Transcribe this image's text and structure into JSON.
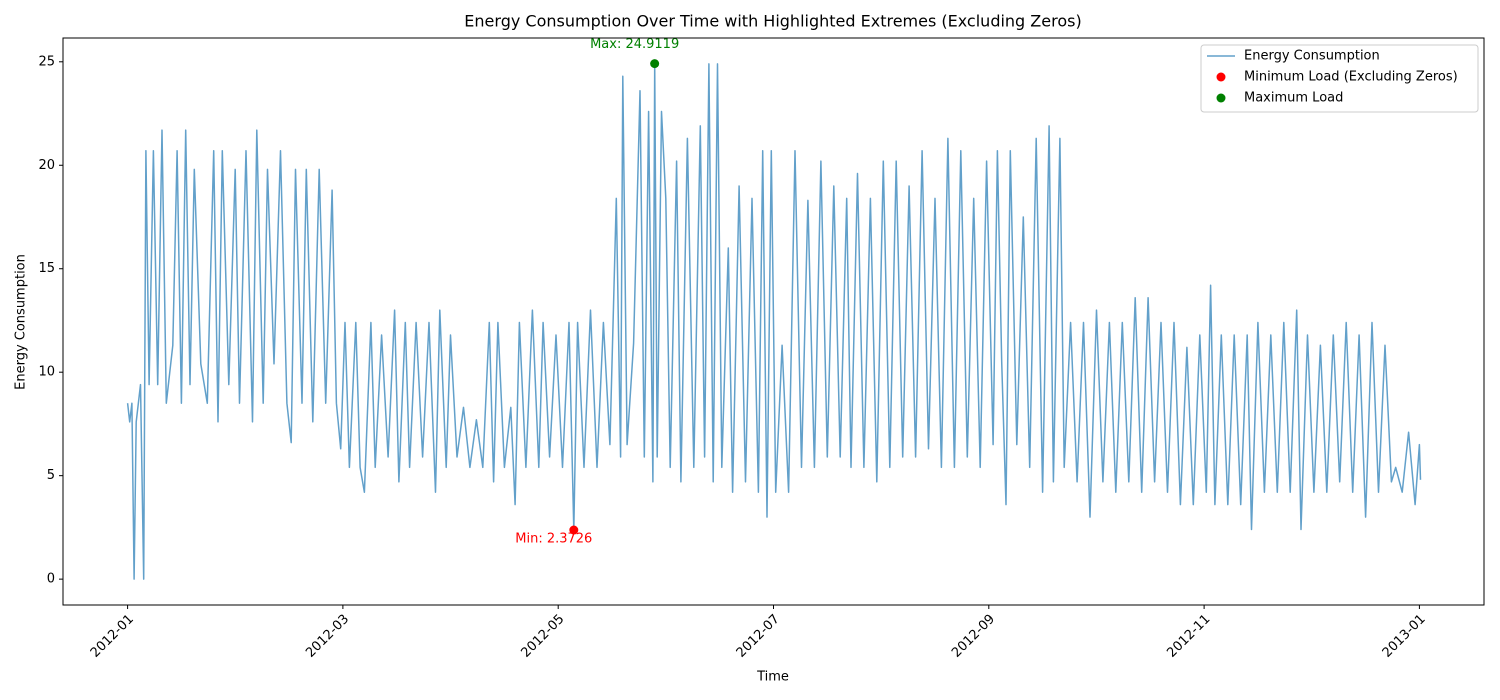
{
  "chart_data": {
    "type": "line",
    "title": "Energy Consumption Over Time with Highlighted Extremes (Excluding Zeros)",
    "x_label": "Time",
    "y_label": "Energy Consumption",
    "xlim": [
      -0.6,
      12.6
    ],
    "xticks": [
      {
        "value": 0,
        "label": "2012-01"
      },
      {
        "value": 2,
        "label": "2012-03"
      },
      {
        "value": 4,
        "label": "2012-05"
      },
      {
        "value": 6,
        "label": "2012-07"
      },
      {
        "value": 8,
        "label": "2012-09"
      },
      {
        "value": 10,
        "label": "2012-11"
      },
      {
        "value": 12,
        "label": "2013-01"
      }
    ],
    "ylim": [
      -1.25,
      26.15
    ],
    "yticks": [
      0,
      5,
      10,
      15,
      20,
      25
    ],
    "grid": false,
    "legend": "upper right",
    "series": [
      {
        "name": "Energy Consumption",
        "color": "#1f77b4",
        "alpha": 0.7,
        "style": "line",
        "x": [
          0.0,
          0.02,
          0.04,
          0.06,
          0.08,
          0.12,
          0.15,
          0.17,
          0.2,
          0.24,
          0.28,
          0.32,
          0.36,
          0.42,
          0.46,
          0.5,
          0.54,
          0.58,
          0.62,
          0.68,
          0.74,
          0.8,
          0.84,
          0.88,
          0.94,
          1.0,
          1.04,
          1.1,
          1.16,
          1.2,
          1.26,
          1.3,
          1.36,
          1.42,
          1.48,
          1.52,
          1.56,
          1.62,
          1.66,
          1.72,
          1.78,
          1.84,
          1.9,
          1.94,
          1.98,
          2.02,
          2.06,
          2.12,
          2.16,
          2.2,
          2.26,
          2.3,
          2.36,
          2.42,
          2.48,
          2.52,
          2.58,
          2.62,
          2.68,
          2.74,
          2.8,
          2.86,
          2.9,
          2.96,
          3.0,
          3.06,
          3.12,
          3.18,
          3.24,
          3.3,
          3.36,
          3.4,
          3.44,
          3.5,
          3.56,
          3.6,
          3.64,
          3.7,
          3.76,
          3.82,
          3.86,
          3.92,
          3.98,
          4.04,
          4.1,
          4.145,
          4.18,
          4.24,
          4.3,
          4.36,
          4.42,
          4.48,
          4.54,
          4.58,
          4.6,
          4.64,
          4.7,
          4.76,
          4.8,
          4.84,
          4.88,
          4.896,
          4.92,
          4.96,
          5.0,
          5.04,
          5.1,
          5.14,
          5.2,
          5.26,
          5.32,
          5.36,
          5.4,
          5.44,
          5.48,
          5.52,
          5.58,
          5.62,
          5.68,
          5.74,
          5.8,
          5.86,
          5.9,
          5.94,
          5.98,
          6.02,
          6.08,
          6.14,
          6.2,
          6.26,
          6.32,
          6.38,
          6.44,
          6.5,
          6.56,
          6.62,
          6.68,
          6.72,
          6.78,
          6.84,
          6.9,
          6.96,
          7.02,
          7.08,
          7.14,
          7.2,
          7.26,
          7.32,
          7.38,
          7.44,
          7.5,
          7.56,
          7.62,
          7.68,
          7.74,
          7.8,
          7.86,
          7.92,
          7.98,
          8.04,
          8.08,
          8.12,
          8.16,
          8.2,
          8.26,
          8.32,
          8.38,
          8.44,
          8.5,
          8.56,
          8.6,
          8.66,
          8.7,
          8.76,
          8.82,
          8.88,
          8.94,
          9.0,
          9.06,
          9.12,
          9.18,
          9.24,
          9.3,
          9.36,
          9.42,
          9.48,
          9.54,
          9.6,
          9.66,
          9.72,
          9.78,
          9.84,
          9.9,
          9.96,
          10.02,
          10.06,
          10.1,
          10.16,
          10.22,
          10.28,
          10.34,
          10.4,
          10.44,
          10.5,
          10.56,
          10.62,
          10.68,
          10.74,
          10.8,
          10.86,
          10.9,
          10.96,
          11.02,
          11.08,
          11.14,
          11.2,
          11.26,
          11.32,
          11.38,
          11.44,
          11.5,
          11.56,
          11.62,
          11.68,
          11.74,
          11.78,
          11.84,
          11.9,
          11.96,
          12.0,
          12.01
        ],
        "values": [
          8.5,
          7.6,
          8.5,
          0,
          7.6,
          9.4,
          0,
          20.7,
          9.4,
          20.7,
          9.4,
          21.7,
          8.5,
          11.3,
          20.7,
          8.5,
          21.7,
          9.4,
          19.8,
          10.4,
          8.5,
          20.7,
          7.6,
          20.7,
          9.4,
          19.8,
          8.5,
          20.7,
          7.6,
          21.7,
          8.5,
          19.8,
          10.4,
          20.7,
          8.5,
          6.6,
          19.8,
          8.5,
          19.8,
          7.6,
          19.8,
          8.5,
          18.8,
          8.5,
          6.3,
          12.4,
          5.4,
          12.4,
          5.4,
          4.2,
          12.4,
          5.4,
          11.8,
          5.9,
          13.0,
          4.7,
          12.4,
          5.4,
          12.4,
          5.9,
          12.4,
          4.2,
          13.0,
          5.4,
          11.8,
          5.9,
          8.3,
          5.4,
          7.7,
          5.4,
          12.4,
          4.7,
          12.4,
          5.4,
          8.3,
          3.6,
          12.4,
          5.4,
          13.0,
          5.4,
          12.4,
          5.9,
          11.8,
          5.4,
          12.4,
          2.3726,
          12.4,
          5.4,
          13.0,
          5.4,
          12.4,
          6.5,
          18.4,
          5.9,
          24.3,
          6.5,
          11.4,
          23.6,
          5.9,
          22.6,
          4.7,
          24.9119,
          5.9,
          22.6,
          18.4,
          5.4,
          20.2,
          4.7,
          21.3,
          5.4,
          21.9,
          5.9,
          24.9,
          4.7,
          24.9,
          5.4,
          16.0,
          4.2,
          19.0,
          4.7,
          18.4,
          4.2,
          20.7,
          3.0,
          20.7,
          4.2,
          11.3,
          4.2,
          20.7,
          5.4,
          18.3,
          5.4,
          20.2,
          5.9,
          19.0,
          5.9,
          18.4,
          5.4,
          19.6,
          5.4,
          18.4,
          4.7,
          20.2,
          5.4,
          20.2,
          5.9,
          19.0,
          5.9,
          20.7,
          6.3,
          18.4,
          5.4,
          21.3,
          5.4,
          20.7,
          5.9,
          18.4,
          5.4,
          20.2,
          6.5,
          20.7,
          10.5,
          3.6,
          20.7,
          6.5,
          17.5,
          5.4,
          21.3,
          4.2,
          21.9,
          4.7,
          21.3,
          5.4,
          12.4,
          4.7,
          12.4,
          3.0,
          13.0,
          4.7,
          12.4,
          4.2,
          12.4,
          4.7,
          13.6,
          4.2,
          13.6,
          4.7,
          12.4,
          4.2,
          12.4,
          3.6,
          11.2,
          3.6,
          11.8,
          4.2,
          14.2,
          3.6,
          11.8,
          3.6,
          11.8,
          3.6,
          11.8,
          2.4,
          12.4,
          4.2,
          11.8,
          4.2,
          12.4,
          4.2,
          13.0,
          2.4,
          11.8,
          4.2,
          11.3,
          4.2,
          11.8,
          4.7,
          12.4,
          4.2,
          11.8,
          3.0,
          12.4,
          4.2,
          11.3,
          4.7,
          5.4,
          4.2,
          7.1,
          3.6,
          6.5,
          4.8
        ]
      },
      {
        "name": "Minimum Load (Excluding Zeros)",
        "color": "#ff0000",
        "style": "scatter",
        "x": [
          4.145
        ],
        "values": [
          2.3726
        ]
      },
      {
        "name": "Maximum Load",
        "color": "#008000",
        "style": "scatter",
        "x": [
          4.896
        ],
        "values": [
          24.9119
        ]
      }
    ],
    "annotations": [
      {
        "text": "Min: 2.3726"
      },
      {
        "text": "Max: 24.9119"
      }
    ]
  }
}
